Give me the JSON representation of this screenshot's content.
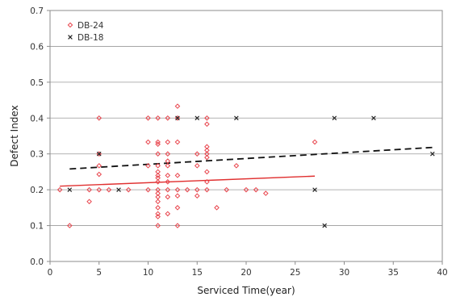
{
  "chart_data": {
    "type": "scatter",
    "title": "",
    "xlabel": "Serviced Time(year)",
    "ylabel": "Defect Index",
    "xlim": [
      0,
      40
    ],
    "ylim": [
      0,
      0.7
    ],
    "x_ticks": [
      0,
      5,
      10,
      15,
      20,
      25,
      30,
      35,
      40
    ],
    "y_ticks": [
      0.0,
      0.1,
      0.2,
      0.3,
      0.4,
      0.5,
      0.6,
      0.7
    ],
    "x_tick_labels": [
      "0",
      "5",
      "10",
      "15",
      "20",
      "25",
      "30",
      "35",
      "40"
    ],
    "y_tick_labels": [
      "0.0",
      "0.1",
      "0.2",
      "0.3",
      "0.4",
      "0.5",
      "0.6",
      "0.7"
    ],
    "grid": "horizontal",
    "legend_position": "top-left",
    "series": [
      {
        "name": "DB-24",
        "marker": "diamond",
        "color": "#e8434b",
        "points": [
          [
            1,
            0.2
          ],
          [
            2,
            0.1
          ],
          [
            4,
            0.2
          ],
          [
            4,
            0.167
          ],
          [
            5,
            0.4
          ],
          [
            5,
            0.3
          ],
          [
            5,
            0.267
          ],
          [
            5,
            0.243
          ],
          [
            5,
            0.2
          ],
          [
            6,
            0.2
          ],
          [
            8,
            0.2
          ],
          [
            10,
            0.4
          ],
          [
            10,
            0.333
          ],
          [
            10,
            0.267
          ],
          [
            10,
            0.2
          ],
          [
            11,
            0.4
          ],
          [
            11,
            0.333
          ],
          [
            11,
            0.327
          ],
          [
            11,
            0.3
          ],
          [
            11,
            0.267
          ],
          [
            11,
            0.25
          ],
          [
            11,
            0.24
          ],
          [
            11,
            0.233
          ],
          [
            11,
            0.222
          ],
          [
            11,
            0.2
          ],
          [
            11,
            0.19
          ],
          [
            11,
            0.18
          ],
          [
            11,
            0.167
          ],
          [
            11,
            0.15
          ],
          [
            11,
            0.133
          ],
          [
            11,
            0.125
          ],
          [
            11,
            0.1
          ],
          [
            12,
            0.4
          ],
          [
            12,
            0.333
          ],
          [
            12,
            0.3
          ],
          [
            12,
            0.28
          ],
          [
            12,
            0.267
          ],
          [
            12,
            0.24
          ],
          [
            12,
            0.222
          ],
          [
            12,
            0.2
          ],
          [
            12,
            0.18
          ],
          [
            12,
            0.133
          ],
          [
            13,
            0.433
          ],
          [
            13,
            0.4
          ],
          [
            13,
            0.333
          ],
          [
            13,
            0.24
          ],
          [
            13,
            0.2
          ],
          [
            13,
            0.183
          ],
          [
            13,
            0.15
          ],
          [
            13,
            0.1
          ],
          [
            14,
            0.2
          ],
          [
            15,
            0.3
          ],
          [
            15,
            0.267
          ],
          [
            15,
            0.2
          ],
          [
            15,
            0.183
          ],
          [
            16,
            0.4
          ],
          [
            16,
            0.383
          ],
          [
            16,
            0.32
          ],
          [
            16,
            0.31
          ],
          [
            16,
            0.3
          ],
          [
            16,
            0.29
          ],
          [
            16,
            0.25
          ],
          [
            16,
            0.222
          ],
          [
            16,
            0.2
          ],
          [
            17,
            0.15
          ],
          [
            18,
            0.2
          ],
          [
            19,
            0.267
          ],
          [
            20,
            0.2
          ],
          [
            21,
            0.2
          ],
          [
            22,
            0.19
          ],
          [
            27,
            0.333
          ]
        ],
        "trend": {
          "x": [
            1,
            27
          ],
          "y": [
            0.21,
            0.238
          ],
          "style": "solid"
        }
      },
      {
        "name": "DB-18",
        "marker": "x",
        "color": "#222222",
        "points": [
          [
            2,
            0.2
          ],
          [
            5,
            0.3
          ],
          [
            7,
            0.2
          ],
          [
            13,
            0.4
          ],
          [
            15,
            0.4
          ],
          [
            19,
            0.4
          ],
          [
            27,
            0.2
          ],
          [
            28,
            0.1
          ],
          [
            29,
            0.4
          ],
          [
            33,
            0.4
          ],
          [
            39,
            0.3
          ]
        ],
        "trend": {
          "x": [
            2,
            39
          ],
          "y": [
            0.258,
            0.318
          ],
          "style": "dashed"
        }
      }
    ]
  }
}
